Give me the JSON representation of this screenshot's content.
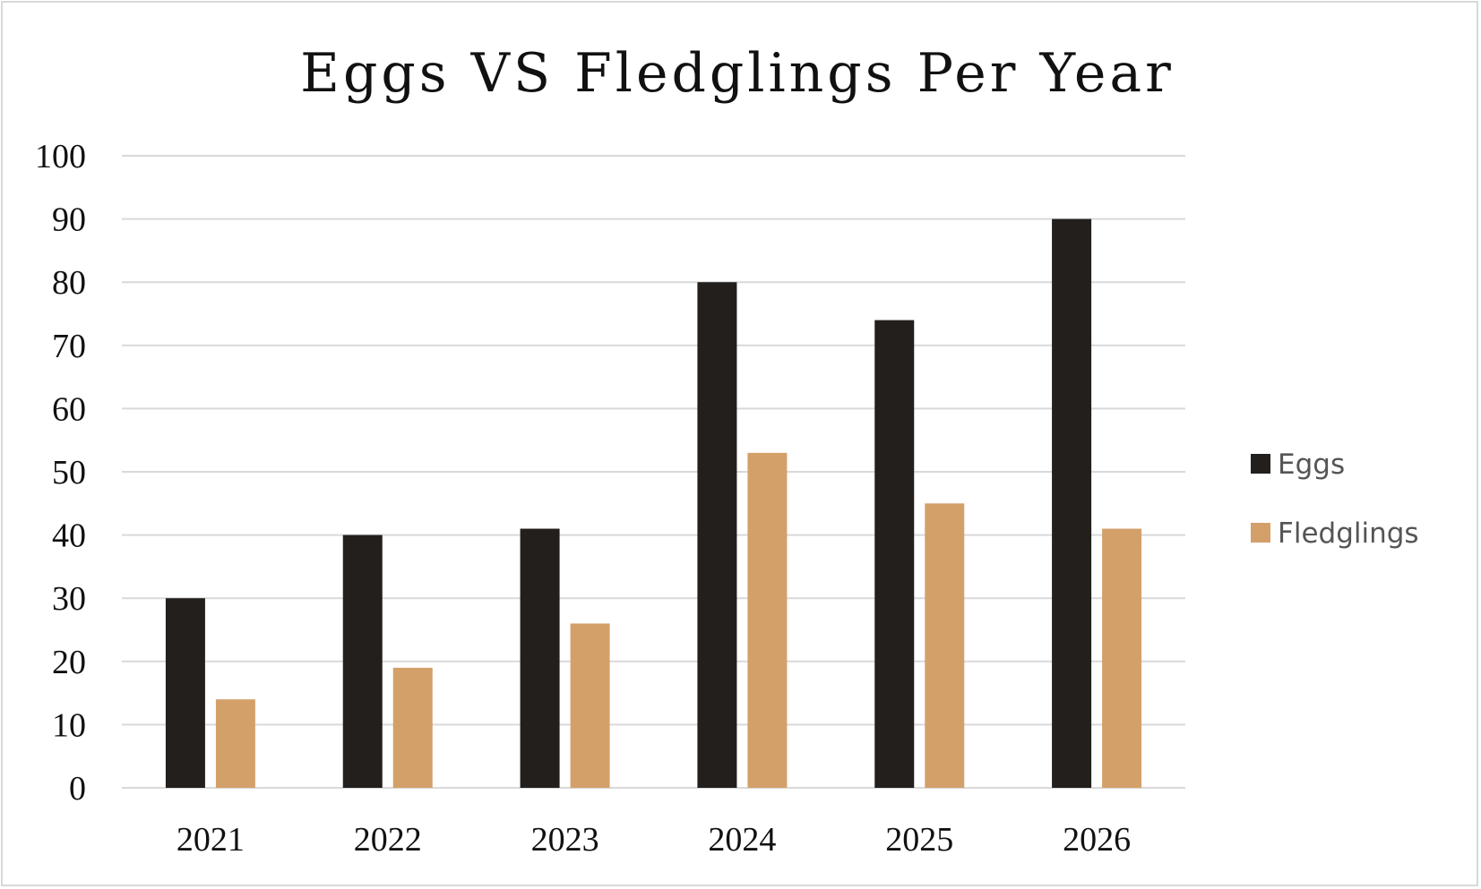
{
  "chart_data": {
    "type": "bar",
    "title": "Eggs VS Fledglings Per Year",
    "xlabel": "",
    "ylabel": "",
    "categories": [
      "2021",
      "2022",
      "2023",
      "2024",
      "2025",
      "2026"
    ],
    "series": [
      {
        "name": "Eggs",
        "color": "#231f1c",
        "values": [
          30,
          40,
          41,
          80,
          74,
          90
        ]
      },
      {
        "name": "Fledglings",
        "color": "#d4a06a",
        "values": [
          14,
          19,
          26,
          53,
          45,
          41
        ]
      }
    ],
    "ylim": [
      0,
      100
    ],
    "yticks": [
      "0",
      "10",
      "20",
      "30",
      "40",
      "50",
      "60",
      "70",
      "80",
      "90",
      "100"
    ],
    "grid": true,
    "gridline_color": "#d9d9d9",
    "legend_position": "right"
  }
}
